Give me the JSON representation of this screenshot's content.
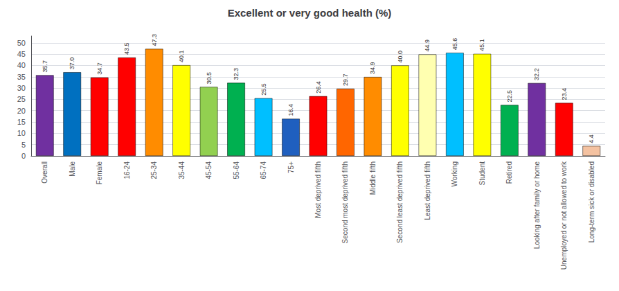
{
  "chart_data": {
    "type": "bar",
    "title": "Excellent or very good health (%)",
    "categories": [
      "Overall",
      "Male",
      "Female",
      "16-24",
      "25-34",
      "35-44",
      "45-54",
      "55-64",
      "65-74",
      "75+",
      "Most deprived fifth",
      "Second most deprived fifth",
      "Middle fifth",
      "Second least deprived fifth",
      "Least deprived fifth",
      "Working",
      "Student",
      "Retired",
      "Looking after family or home",
      "Unemployed or not allowed to work",
      "Long-term sick or disabled"
    ],
    "values": [
      35.7,
      37.0,
      34.7,
      43.5,
      47.3,
      40.1,
      30.5,
      32.3,
      25.5,
      16.4,
      26.4,
      29.7,
      34.9,
      40.0,
      44.9,
      45.6,
      45.1,
      22.5,
      32.2,
      23.4,
      4.4
    ],
    "value_labels": [
      "35.7",
      "37.0",
      "34.7",
      "43.5",
      "47.3",
      "40.1",
      "30.5",
      "32.3",
      "25.5",
      "16.4",
      "26.4",
      "29.7",
      "34.9",
      "40.0",
      "44.9",
      "45.6",
      "45.1",
      "22.5",
      "32.2",
      "23.4",
      "4.4"
    ],
    "colors": [
      "#7030A0",
      "#0070C0",
      "#FF0000",
      "#FF0000",
      "#FF8C00",
      "#FFFF00",
      "#92D050",
      "#00B050",
      "#00BFFF",
      "#1F5FBF",
      "#FF0000",
      "#FF6600",
      "#FF8C00",
      "#FFFF00",
      "#FFFFB0",
      "#00BFFF",
      "#FFFF00",
      "#00B050",
      "#7030A0",
      "#FF0000",
      "#F4C2A1"
    ],
    "ylim": [
      0,
      53
    ],
    "yticks": [
      0,
      5,
      10,
      15,
      20,
      25,
      30,
      35,
      40,
      45,
      50
    ],
    "grid": true,
    "data_labels": true
  }
}
